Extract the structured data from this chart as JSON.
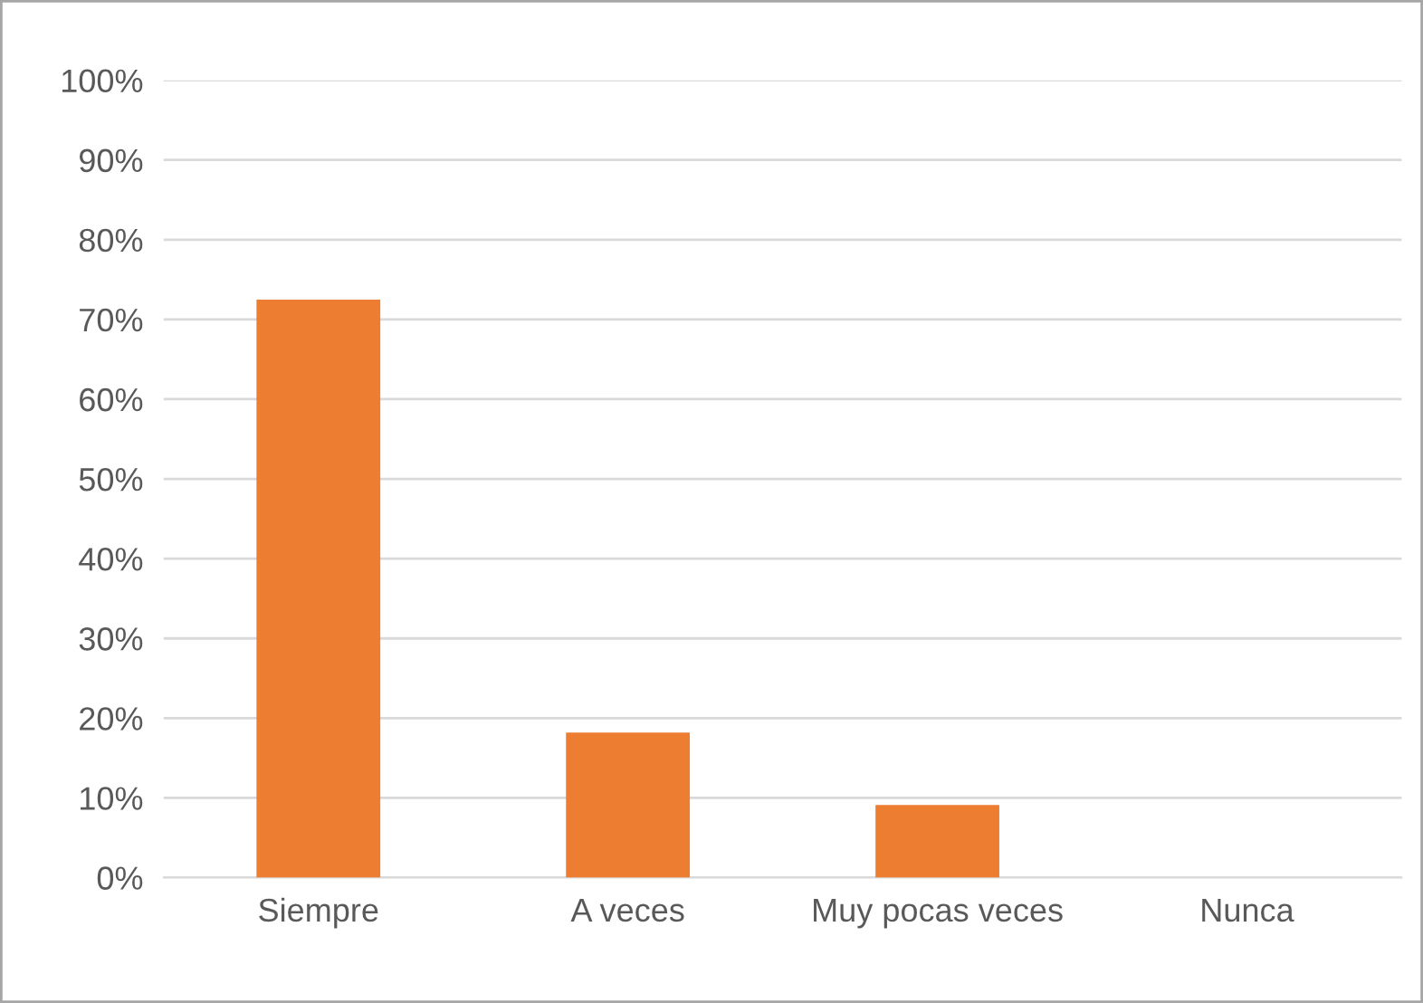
{
  "chart_data": {
    "type": "bar",
    "categories": [
      "Siempre",
      "A veces",
      "Muy pocas veces",
      "Nunca"
    ],
    "values": [
      72.5,
      18.2,
      9.1,
      0
    ],
    "color": "#ed7d31",
    "ylim": [
      0,
      100
    ],
    "yticks": [
      {
        "value": 0,
        "label": "0%"
      },
      {
        "value": 10,
        "label": "10%"
      },
      {
        "value": 20,
        "label": "20%"
      },
      {
        "value": 30,
        "label": "30%"
      },
      {
        "value": 40,
        "label": "40%"
      },
      {
        "value": 50,
        "label": "50%"
      },
      {
        "value": 60,
        "label": "60%"
      },
      {
        "value": 70,
        "label": "70%"
      },
      {
        "value": 80,
        "label": "80%"
      },
      {
        "value": 90,
        "label": "90%"
      },
      {
        "value": 100,
        "label": "100%"
      }
    ],
    "grid": "y"
  }
}
